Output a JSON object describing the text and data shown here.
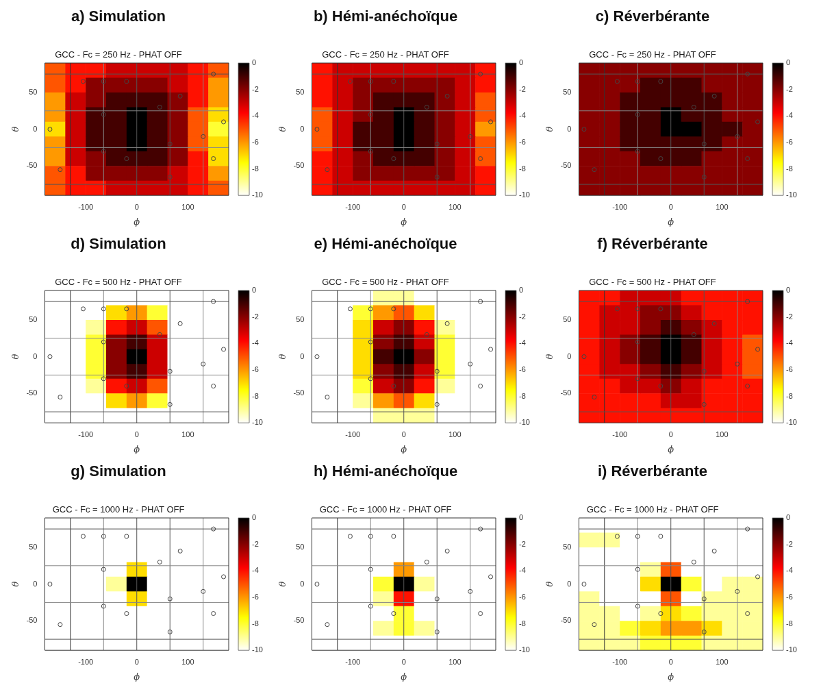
{
  "chart_data": [
    {
      "type": "heatmap",
      "title": "a) Simulation",
      "subtitle": "GCC - Fc = 250 Hz - PHAT OFF",
      "xlabel": "ϕ",
      "ylabel": "θ",
      "xlim": [
        -180,
        180
      ],
      "ylim": [
        -90,
        90
      ],
      "xticks": [
        -100,
        0,
        100
      ],
      "yticks": [
        -50,
        0,
        50
      ],
      "clim": [
        -10,
        0
      ],
      "cticks": [
        0,
        -2,
        -4,
        -6,
        -8,
        -10
      ],
      "grid": false,
      "marker": "circle",
      "cells": [
        [
          -5,
          -4,
          -4,
          -3,
          -3,
          -3,
          -3,
          -4,
          -5
        ],
        [
          -5,
          -4,
          -2,
          -2,
          -2,
          -2,
          -3,
          -4,
          -6
        ],
        [
          -6,
          -3,
          -2,
          -1,
          -1,
          -1,
          -2,
          -4,
          -6
        ],
        [
          -6,
          -3,
          -1,
          -1,
          0,
          -1,
          -2,
          -5,
          -7
        ],
        [
          -7,
          -3,
          -1,
          -1,
          0,
          -1,
          -2,
          -5,
          -8
        ],
        [
          -6,
          -3,
          -1,
          -1,
          0,
          -1,
          -2,
          -5,
          -7
        ],
        [
          -6,
          -3,
          -2,
          -1,
          -1,
          -1,
          -2,
          -4,
          -7
        ],
        [
          -5,
          -4,
          -2,
          -2,
          -2,
          -2,
          -3,
          -4,
          -6
        ],
        [
          -5,
          -4,
          -4,
          -3,
          -3,
          -3,
          -3,
          -4,
          -5
        ]
      ],
      "ref_lines": [
        {
          "axis": "x",
          "value": -130,
          "color": "#333333"
        },
        {
          "axis": "x",
          "value": -65,
          "color": "#888888"
        },
        {
          "axis": "x",
          "value": 0,
          "color": "#555555"
        },
        {
          "axis": "x",
          "value": 65,
          "color": "#555555"
        },
        {
          "axis": "x",
          "value": 130,
          "color": "#888888"
        },
        {
          "axis": "y",
          "value": 75,
          "color": "#555555"
        },
        {
          "axis": "y",
          "value": 25,
          "color": "#888888"
        },
        {
          "axis": "y",
          "value": -25,
          "color": "#888888"
        },
        {
          "axis": "y",
          "value": -75,
          "color": "#555555"
        }
      ],
      "series": [
        {
          "type": "scatter",
          "color": "#444444",
          "x": [
            -105,
            -65,
            -20,
            150,
            85,
            45,
            -65,
            170,
            -170,
            130,
            65,
            -65,
            -20,
            150,
            -150,
            65
          ],
          "values": [
            65,
            65,
            65,
            75,
            45,
            30,
            20,
            10,
            0,
            -10,
            -20,
            -30,
            -40,
            -40,
            -55,
            -65
          ]
        }
      ]
    },
    {
      "type": "heatmap",
      "title": "b) Hémi-anéchoïque",
      "subtitle": "GCC - Fc = 250 Hz - PHAT OFF",
      "xlabel": "ϕ",
      "ylabel": "θ",
      "xlim": [
        -180,
        180
      ],
      "ylim": [
        -90,
        90
      ],
      "xticks": [
        -100,
        0,
        100
      ],
      "yticks": [
        -50,
        0,
        50
      ],
      "clim": [
        -10,
        0
      ],
      "cticks": [
        0,
        -2,
        -4,
        -6,
        -8,
        -10
      ],
      "grid": false,
      "marker": "circle",
      "cells": [
        [
          -4,
          -3,
          -3,
          -3,
          -3,
          -3,
          -3,
          -3,
          -4
        ],
        [
          -4,
          -3,
          -2,
          -2,
          -2,
          -2,
          -2,
          -3,
          -4
        ],
        [
          -4,
          -3,
          -2,
          -1,
          -1,
          -1,
          -2,
          -3,
          -5
        ],
        [
          -5,
          -3,
          -2,
          -1,
          0,
          -1,
          -2,
          -3,
          -5
        ],
        [
          -5,
          -3,
          -1,
          -1,
          0,
          -1,
          -2,
          -3,
          -6
        ],
        [
          -5,
          -3,
          -1,
          -1,
          0,
          -1,
          -2,
          -3,
          -5
        ],
        [
          -4,
          -3,
          -2,
          -1,
          -1,
          -1,
          -2,
          -3,
          -5
        ],
        [
          -4,
          -3,
          -2,
          -2,
          -2,
          -2,
          -2,
          -3,
          -4
        ],
        [
          -4,
          -3,
          -3,
          -3,
          -3,
          -3,
          -3,
          -3,
          -4
        ]
      ],
      "ref_lines": [
        {
          "axis": "x",
          "value": -130,
          "color": "#333333"
        },
        {
          "axis": "x",
          "value": -65,
          "color": "#888888"
        },
        {
          "axis": "x",
          "value": 0,
          "color": "#555555"
        },
        {
          "axis": "x",
          "value": 65,
          "color": "#555555"
        },
        {
          "axis": "x",
          "value": 130,
          "color": "#888888"
        },
        {
          "axis": "y",
          "value": 75,
          "color": "#555555"
        },
        {
          "axis": "y",
          "value": 25,
          "color": "#888888"
        },
        {
          "axis": "y",
          "value": -25,
          "color": "#888888"
        },
        {
          "axis": "y",
          "value": -75,
          "color": "#555555"
        }
      ],
      "series": [
        {
          "type": "scatter",
          "color": "#444444",
          "x": [
            -105,
            -65,
            -20,
            150,
            85,
            45,
            -65,
            170,
            -170,
            130,
            65,
            -65,
            -20,
            150,
            -150,
            65
          ],
          "values": [
            65,
            65,
            65,
            75,
            45,
            30,
            20,
            10,
            0,
            -10,
            -20,
            -30,
            -40,
            -40,
            -55,
            -65
          ]
        }
      ]
    },
    {
      "type": "heatmap",
      "title": "c) Réverbérante",
      "subtitle": "GCC - Fc = 250 Hz - PHAT OFF",
      "xlabel": "ϕ",
      "ylabel": "θ",
      "xlim": [
        -180,
        180
      ],
      "ylim": [
        -90,
        90
      ],
      "xticks": [
        -100,
        0,
        100
      ],
      "yticks": [
        -50,
        0,
        50
      ],
      "clim": [
        -10,
        0
      ],
      "cticks": [
        0,
        -2,
        -4,
        -6,
        -8,
        -10
      ],
      "grid": false,
      "marker": "circle",
      "cells": [
        [
          -2,
          -2,
          -2,
          -2,
          -2,
          -2,
          -2,
          -2,
          -2
        ],
        [
          -2,
          -2,
          -2,
          -1,
          -1,
          -1,
          -2,
          -2,
          -2
        ],
        [
          -2,
          -2,
          -1,
          -1,
          -1,
          -1,
          -1,
          -2,
          -2
        ],
        [
          -2,
          -2,
          -1,
          -1,
          0,
          -1,
          -1,
          -2,
          -2
        ],
        [
          -2,
          -2,
          -1,
          -1,
          0,
          0,
          -1,
          -1,
          -2
        ],
        [
          -2,
          -2,
          -1,
          -1,
          -1,
          -1,
          -1,
          -2,
          -2
        ],
        [
          -2,
          -2,
          -2,
          -1,
          -1,
          -1,
          -2,
          -2,
          -2
        ],
        [
          -2,
          -2,
          -2,
          -2,
          -2,
          -2,
          -2,
          -2,
          -2
        ],
        [
          -2,
          -2,
          -2,
          -2,
          -2,
          -2,
          -2,
          -2,
          -2
        ]
      ],
      "ref_lines": [
        {
          "axis": "x",
          "value": -130,
          "color": "#333333"
        },
        {
          "axis": "x",
          "value": -65,
          "color": "#888888"
        },
        {
          "axis": "x",
          "value": 0,
          "color": "#555555"
        },
        {
          "axis": "x",
          "value": 65,
          "color": "#555555"
        },
        {
          "axis": "x",
          "value": 130,
          "color": "#888888"
        },
        {
          "axis": "y",
          "value": 75,
          "color": "#555555"
        },
        {
          "axis": "y",
          "value": 25,
          "color": "#888888"
        },
        {
          "axis": "y",
          "value": -25,
          "color": "#888888"
        },
        {
          "axis": "y",
          "value": -75,
          "color": "#555555"
        }
      ],
      "series": [
        {
          "type": "scatter",
          "color": "#444444",
          "x": [
            -105,
            -65,
            -20,
            150,
            85,
            45,
            -65,
            170,
            -170,
            130,
            65,
            -65,
            -20,
            150,
            -150,
            65
          ],
          "values": [
            65,
            65,
            65,
            75,
            45,
            30,
            20,
            10,
            0,
            -10,
            -20,
            -30,
            -40,
            -40,
            -55,
            -65
          ]
        }
      ]
    },
    {
      "type": "heatmap",
      "title": "d) Simulation",
      "subtitle": "GCC - Fc = 500 Hz - PHAT OFF",
      "xlabel": "ϕ",
      "ylabel": "θ",
      "xlim": [
        -180,
        180
      ],
      "ylim": [
        -90,
        90
      ],
      "xticks": [
        -100,
        0,
        100
      ],
      "yticks": [
        -50,
        0,
        50
      ],
      "clim": [
        -10,
        0
      ],
      "cticks": [
        0,
        -2,
        -4,
        -6,
        -8,
        -10
      ],
      "grid": false,
      "marker": "circle",
      "cells": [
        [
          -10,
          -10,
          -10,
          -10,
          -10,
          -10,
          -10,
          -10,
          -10
        ],
        [
          -10,
          -10,
          -10,
          -7,
          -6,
          -8,
          -10,
          -10,
          -10
        ],
        [
          -10,
          -10,
          -9,
          -4,
          -3,
          -5,
          -10,
          -10,
          -10
        ],
        [
          -10,
          -10,
          -8,
          -2,
          -1,
          -3,
          -10,
          -10,
          -10
        ],
        [
          -10,
          -10,
          -8,
          -2,
          0,
          -3,
          -10,
          -10,
          -10
        ],
        [
          -10,
          -10,
          -8,
          -2,
          -1,
          -3,
          -10,
          -10,
          -10
        ],
        [
          -10,
          -10,
          -9,
          -4,
          -3,
          -5,
          -10,
          -10,
          -10
        ],
        [
          -10,
          -10,
          -10,
          -7,
          -6,
          -8,
          -10,
          -10,
          -10
        ],
        [
          -10,
          -10,
          -10,
          -10,
          -10,
          -10,
          -10,
          -10,
          -10
        ]
      ],
      "ref_lines": [
        {
          "axis": "x",
          "value": -130,
          "color": "#333333"
        },
        {
          "axis": "x",
          "value": -65,
          "color": "#888888"
        },
        {
          "axis": "x",
          "value": 0,
          "color": "#555555"
        },
        {
          "axis": "x",
          "value": 65,
          "color": "#555555"
        },
        {
          "axis": "x",
          "value": 130,
          "color": "#888888"
        },
        {
          "axis": "y",
          "value": 75,
          "color": "#555555"
        },
        {
          "axis": "y",
          "value": 25,
          "color": "#888888"
        },
        {
          "axis": "y",
          "value": -25,
          "color": "#888888"
        },
        {
          "axis": "y",
          "value": -75,
          "color": "#555555"
        }
      ],
      "series": [
        {
          "type": "scatter",
          "color": "#444444",
          "x": [
            -105,
            -65,
            -20,
            150,
            85,
            45,
            -65,
            170,
            -170,
            130,
            65,
            -65,
            -20,
            150,
            -150,
            65
          ],
          "values": [
            65,
            65,
            65,
            75,
            45,
            30,
            20,
            10,
            0,
            -10,
            -20,
            -30,
            -40,
            -40,
            -55,
            -65
          ]
        }
      ]
    },
    {
      "type": "heatmap",
      "title": "e) Hémi-anéchoïque",
      "subtitle": "GCC - Fc = 500 Hz - PHAT OFF",
      "xlabel": "ϕ",
      "ylabel": "θ",
      "xlim": [
        -180,
        180
      ],
      "ylim": [
        -90,
        90
      ],
      "xticks": [
        -100,
        0,
        100
      ],
      "yticks": [
        -50,
        0,
        50
      ],
      "clim": [
        -10,
        0
      ],
      "cticks": [
        0,
        -2,
        -4,
        -6,
        -8,
        -10
      ],
      "grid": false,
      "marker": "circle",
      "cells": [
        [
          -10,
          -10,
          -10,
          -9,
          -9,
          -10,
          -10,
          -10,
          -10
        ],
        [
          -10,
          -10,
          -8,
          -6,
          -5,
          -7,
          -10,
          -10,
          -10
        ],
        [
          -10,
          -10,
          -7,
          -3,
          -2,
          -4,
          -9,
          -10,
          -10
        ],
        [
          -10,
          -10,
          -7,
          -2,
          -1,
          -3,
          -8,
          -10,
          -10
        ],
        [
          -10,
          -10,
          -7,
          -1,
          0,
          -2,
          -8,
          -10,
          -10
        ],
        [
          -10,
          -10,
          -7,
          -2,
          -1,
          -3,
          -8,
          -10,
          -10
        ],
        [
          -10,
          -10,
          -8,
          -3,
          -2,
          -4,
          -9,
          -10,
          -10
        ],
        [
          -10,
          -10,
          -9,
          -6,
          -5,
          -7,
          -10,
          -10,
          -10
        ],
        [
          -10,
          -10,
          -10,
          -9,
          -9,
          -9,
          -10,
          -10,
          -10
        ]
      ],
      "ref_lines": [
        {
          "axis": "x",
          "value": -130,
          "color": "#333333"
        },
        {
          "axis": "x",
          "value": -65,
          "color": "#888888"
        },
        {
          "axis": "x",
          "value": 0,
          "color": "#555555"
        },
        {
          "axis": "x",
          "value": 65,
          "color": "#555555"
        },
        {
          "axis": "x",
          "value": 130,
          "color": "#888888"
        },
        {
          "axis": "y",
          "value": 75,
          "color": "#555555"
        },
        {
          "axis": "y",
          "value": 25,
          "color": "#888888"
        },
        {
          "axis": "y",
          "value": -25,
          "color": "#888888"
        },
        {
          "axis": "y",
          "value": -75,
          "color": "#555555"
        }
      ],
      "series": [
        {
          "type": "scatter",
          "color": "#444444",
          "x": [
            -105,
            -65,
            -20,
            150,
            85,
            45,
            -65,
            170,
            -170,
            130,
            65,
            -65,
            -20,
            150,
            -150,
            65
          ],
          "values": [
            65,
            65,
            65,
            75,
            45,
            30,
            20,
            10,
            0,
            -10,
            -20,
            -30,
            -40,
            -40,
            -55,
            -65
          ]
        }
      ]
    },
    {
      "type": "heatmap",
      "title": "f) Réverbérante",
      "subtitle": "GCC - Fc = 500 Hz - PHAT OFF",
      "xlabel": "ϕ",
      "ylabel": "θ",
      "xlim": [
        -180,
        180
      ],
      "ylim": [
        -90,
        90
      ],
      "xticks": [
        -100,
        0,
        100
      ],
      "yticks": [
        -50,
        0,
        50
      ],
      "clim": [
        -10,
        0
      ],
      "cticks": [
        0,
        -2,
        -4,
        -6,
        -8,
        -10
      ],
      "grid": false,
      "marker": "circle",
      "cells": [
        [
          -4,
          -4,
          -3,
          -3,
          -3,
          -4,
          -4,
          -4,
          -4
        ],
        [
          -4,
          -3,
          -3,
          -2,
          -2,
          -3,
          -4,
          -4,
          -4
        ],
        [
          -4,
          -3,
          -3,
          -2,
          -1,
          -2,
          -3,
          -4,
          -4
        ],
        [
          -4,
          -3,
          -2,
          -1,
          0,
          -1,
          -3,
          -4,
          -5
        ],
        [
          -4,
          -3,
          -2,
          -1,
          0,
          -1,
          -3,
          -4,
          -5
        ],
        [
          -4,
          -3,
          -3,
          -2,
          -1,
          -2,
          -3,
          -4,
          -5
        ],
        [
          -4,
          -4,
          -3,
          -3,
          -2,
          -3,
          -4,
          -4,
          -4
        ],
        [
          -4,
          -4,
          -4,
          -4,
          -3,
          -3,
          -4,
          -4,
          -4
        ],
        [
          -4,
          -4,
          -4,
          -4,
          -4,
          -4,
          -4,
          -4,
          -4
        ]
      ],
      "ref_lines": [
        {
          "axis": "x",
          "value": -130,
          "color": "#333333"
        },
        {
          "axis": "x",
          "value": -65,
          "color": "#888888"
        },
        {
          "axis": "x",
          "value": 0,
          "color": "#555555"
        },
        {
          "axis": "x",
          "value": 65,
          "color": "#555555"
        },
        {
          "axis": "x",
          "value": 130,
          "color": "#888888"
        },
        {
          "axis": "y",
          "value": 75,
          "color": "#555555"
        },
        {
          "axis": "y",
          "value": 25,
          "color": "#888888"
        },
        {
          "axis": "y",
          "value": -25,
          "color": "#888888"
        },
        {
          "axis": "y",
          "value": -75,
          "color": "#555555"
        }
      ],
      "series": [
        {
          "type": "scatter",
          "color": "#444444",
          "x": [
            -105,
            -65,
            -20,
            150,
            85,
            45,
            -65,
            170,
            -170,
            130,
            65,
            -65,
            -20,
            150,
            -150,
            65
          ],
          "values": [
            65,
            65,
            65,
            75,
            45,
            30,
            20,
            10,
            0,
            -10,
            -20,
            -30,
            -40,
            -40,
            -55,
            -65
          ]
        }
      ]
    },
    {
      "type": "heatmap",
      "title": "g) Simulation",
      "subtitle": "GCC - Fc = 1000 Hz - PHAT OFF",
      "xlabel": "ϕ",
      "ylabel": "θ",
      "xlim": [
        -180,
        180
      ],
      "ylim": [
        -90,
        90
      ],
      "xticks": [
        -100,
        0,
        100
      ],
      "yticks": [
        -50,
        0,
        50
      ],
      "clim": [
        -10,
        0
      ],
      "cticks": [
        0,
        -2,
        -4,
        -6,
        -8,
        -10
      ],
      "grid": false,
      "marker": "circle",
      "cells": [
        [
          -10,
          -10,
          -10,
          -10,
          -10,
          -10,
          -10,
          -10,
          -10
        ],
        [
          -10,
          -10,
          -10,
          -10,
          -10,
          -10,
          -10,
          -10,
          -10
        ],
        [
          -10,
          -10,
          -10,
          -10,
          -10,
          -10,
          -10,
          -10,
          -10
        ],
        [
          -10,
          -10,
          -10,
          -10,
          -7,
          -10,
          -10,
          -10,
          -10
        ],
        [
          -10,
          -10,
          -10,
          -9,
          0,
          -10,
          -10,
          -10,
          -10
        ],
        [
          -10,
          -10,
          -10,
          -10,
          -7,
          -10,
          -10,
          -10,
          -10
        ],
        [
          -10,
          -10,
          -10,
          -10,
          -10,
          -10,
          -10,
          -10,
          -10
        ],
        [
          -10,
          -10,
          -10,
          -10,
          -10,
          -10,
          -10,
          -10,
          -10
        ],
        [
          -10,
          -10,
          -10,
          -10,
          -10,
          -10,
          -10,
          -10,
          -10
        ]
      ],
      "ref_lines": [
        {
          "axis": "x",
          "value": -130,
          "color": "#333333"
        },
        {
          "axis": "x",
          "value": -65,
          "color": "#888888"
        },
        {
          "axis": "x",
          "value": 0,
          "color": "#555555"
        },
        {
          "axis": "x",
          "value": 65,
          "color": "#555555"
        },
        {
          "axis": "x",
          "value": 130,
          "color": "#888888"
        },
        {
          "axis": "y",
          "value": 75,
          "color": "#555555"
        },
        {
          "axis": "y",
          "value": 25,
          "color": "#888888"
        },
        {
          "axis": "y",
          "value": -25,
          "color": "#888888"
        },
        {
          "axis": "y",
          "value": -75,
          "color": "#555555"
        }
      ],
      "series": [
        {
          "type": "scatter",
          "color": "#444444",
          "x": [
            -105,
            -65,
            -20,
            150,
            85,
            45,
            -65,
            170,
            -170,
            130,
            65,
            -65,
            -20,
            150,
            -150,
            65
          ],
          "values": [
            65,
            65,
            65,
            75,
            45,
            30,
            20,
            10,
            0,
            -10,
            -20,
            -30,
            -40,
            -40,
            -55,
            -65
          ]
        }
      ]
    },
    {
      "type": "heatmap",
      "title": "h) Hémi-anéchoïque",
      "subtitle": "GCC - Fc = 1000 Hz - PHAT OFF",
      "xlabel": "ϕ",
      "ylabel": "θ",
      "xlim": [
        -180,
        180
      ],
      "ylim": [
        -90,
        90
      ],
      "xticks": [
        -100,
        0,
        100
      ],
      "yticks": [
        -50,
        0,
        50
      ],
      "clim": [
        -10,
        0
      ],
      "cticks": [
        0,
        -2,
        -4,
        -6,
        -8,
        -10
      ],
      "grid": false,
      "marker": "circle",
      "cells": [
        [
          -10,
          -10,
          -10,
          -10,
          -10,
          -10,
          -10,
          -10,
          -10
        ],
        [
          -10,
          -10,
          -10,
          -10,
          -10,
          -10,
          -10,
          -10,
          -10
        ],
        [
          -10,
          -10,
          -10,
          -10,
          -10,
          -10,
          -10,
          -10,
          -10
        ],
        [
          -10,
          -10,
          -10,
          -10,
          -6,
          -10,
          -10,
          -10,
          -10
        ],
        [
          -10,
          -10,
          -10,
          -8,
          0,
          -9,
          -10,
          -10,
          -10
        ],
        [
          -10,
          -10,
          -10,
          -9,
          -4,
          -10,
          -10,
          -10,
          -10
        ],
        [
          -10,
          -10,
          -10,
          -10,
          -8,
          -10,
          -10,
          -10,
          -10
        ],
        [
          -10,
          -10,
          -10,
          -9,
          -8,
          -9,
          -10,
          -10,
          -10
        ],
        [
          -10,
          -10,
          -10,
          -10,
          -10,
          -10,
          -10,
          -10,
          -10
        ]
      ],
      "ref_lines": [
        {
          "axis": "x",
          "value": -130,
          "color": "#333333"
        },
        {
          "axis": "x",
          "value": -65,
          "color": "#888888"
        },
        {
          "axis": "x",
          "value": 0,
          "color": "#555555"
        },
        {
          "axis": "x",
          "value": 65,
          "color": "#555555"
        },
        {
          "axis": "x",
          "value": 130,
          "color": "#888888"
        },
        {
          "axis": "y",
          "value": 75,
          "color": "#555555"
        },
        {
          "axis": "y",
          "value": 25,
          "color": "#888888"
        },
        {
          "axis": "y",
          "value": -25,
          "color": "#888888"
        },
        {
          "axis": "y",
          "value": -75,
          "color": "#555555"
        }
      ],
      "series": [
        {
          "type": "scatter",
          "color": "#444444",
          "x": [
            -105,
            -65,
            -20,
            150,
            85,
            45,
            -65,
            170,
            -170,
            130,
            65,
            -65,
            -20,
            150,
            -150,
            65
          ],
          "values": [
            65,
            65,
            65,
            75,
            45,
            30,
            20,
            10,
            0,
            -10,
            -20,
            -30,
            -40,
            -40,
            -55,
            -65
          ]
        }
      ]
    },
    {
      "type": "heatmap",
      "title": "i) Réverbérante",
      "subtitle": "GCC - Fc = 1000 Hz - PHAT OFF",
      "xlabel": "ϕ",
      "ylabel": "θ",
      "xlim": [
        -180,
        180
      ],
      "ylim": [
        -90,
        90
      ],
      "xticks": [
        -100,
        0,
        100
      ],
      "yticks": [
        -50,
        0,
        50
      ],
      "clim": [
        -10,
        0
      ],
      "cticks": [
        0,
        -2,
        -4,
        -6,
        -8,
        -10
      ],
      "grid": false,
      "marker": "circle",
      "cells": [
        [
          -10,
          -10,
          -10,
          -10,
          -10,
          -10,
          -10,
          -10,
          -10
        ],
        [
          -9,
          -9,
          -10,
          -10,
          -10,
          -10,
          -10,
          -10,
          -10
        ],
        [
          -10,
          -10,
          -10,
          -10,
          -10,
          -10,
          -10,
          -10,
          -10
        ],
        [
          -10,
          -10,
          -10,
          -9,
          -5,
          -10,
          -10,
          -10,
          -10
        ],
        [
          -10,
          -10,
          -10,
          -7,
          0,
          -8,
          -10,
          -9,
          -9
        ],
        [
          -9,
          -10,
          -10,
          -10,
          -5,
          -10,
          -9,
          -9,
          -9
        ],
        [
          -9,
          -9,
          -10,
          -9,
          -7,
          -8,
          -9,
          -9,
          -9
        ],
        [
          -9,
          -9,
          -8,
          -7,
          -6,
          -6,
          -7,
          -9,
          -9
        ],
        [
          -9,
          -9,
          -9,
          -8,
          -8,
          -8,
          -9,
          -9,
          -9
        ]
      ],
      "ref_lines": [
        {
          "axis": "x",
          "value": -130,
          "color": "#333333"
        },
        {
          "axis": "x",
          "value": -65,
          "color": "#888888"
        },
        {
          "axis": "x",
          "value": 0,
          "color": "#555555"
        },
        {
          "axis": "x",
          "value": 65,
          "color": "#555555"
        },
        {
          "axis": "x",
          "value": 130,
          "color": "#888888"
        },
        {
          "axis": "y",
          "value": 75,
          "color": "#555555"
        },
        {
          "axis": "y",
          "value": 25,
          "color": "#888888"
        },
        {
          "axis": "y",
          "value": -25,
          "color": "#888888"
        },
        {
          "axis": "y",
          "value": -75,
          "color": "#555555"
        }
      ],
      "series": [
        {
          "type": "scatter",
          "color": "#444444",
          "x": [
            -105,
            -65,
            -20,
            150,
            85,
            45,
            -65,
            170,
            -170,
            130,
            65,
            -65,
            -20,
            150,
            -150,
            65
          ],
          "values": [
            65,
            65,
            65,
            75,
            45,
            30,
            20,
            10,
            0,
            -10,
            -20,
            -30,
            -40,
            -40,
            -55,
            -65
          ]
        }
      ]
    }
  ]
}
